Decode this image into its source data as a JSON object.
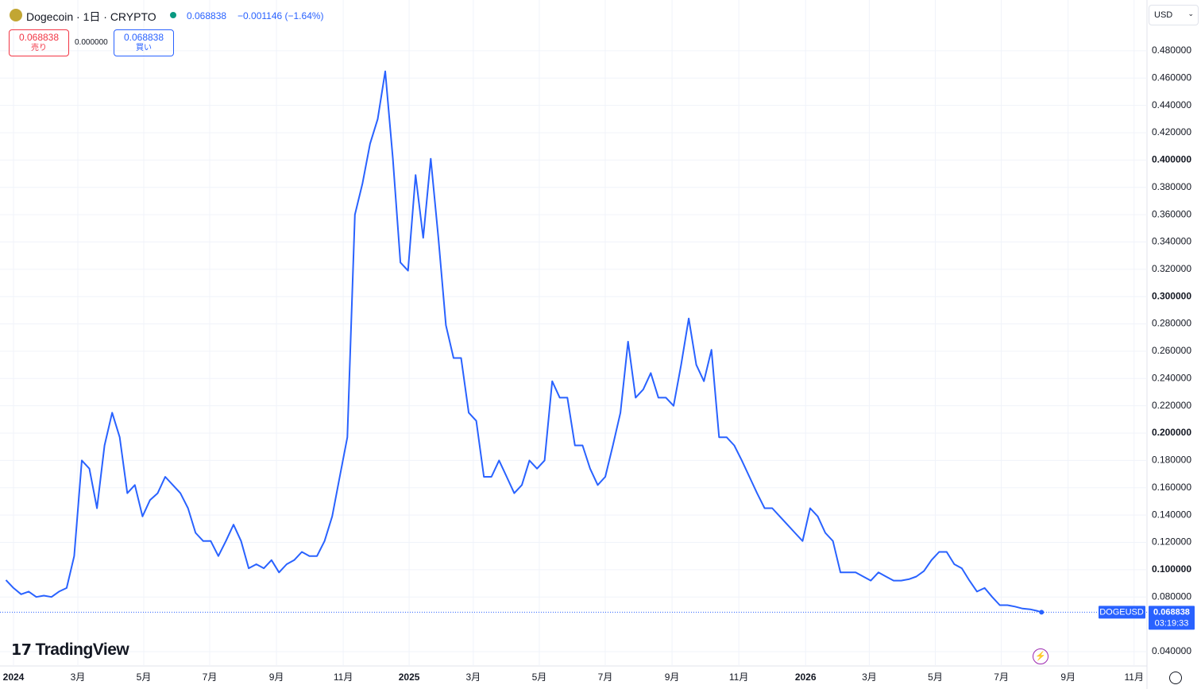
{
  "header": {
    "symbol_title": "Dogecoin · 1日 · CRYPTO",
    "price": "0.068838",
    "change": "−0.001146 (−1.64%)",
    "sell_price": "0.068838",
    "sell_label": "売り",
    "spread": "0.000000",
    "buy_price": "0.068838",
    "buy_label": "買い",
    "currency": "USD",
    "countdown": "03:19:33",
    "logo": "TradingView"
  },
  "chart_data": {
    "type": "line",
    "log_scale": false,
    "grid": true,
    "xlim": [
      -1.78,
      149.4
    ],
    "xticks": [
      {
        "value": 0,
        "label": "2024"
      },
      {
        "value": 8.48,
        "label": "3月"
      },
      {
        "value": 17.17,
        "label": "5月"
      },
      {
        "value": 25.86,
        "label": "7月"
      },
      {
        "value": 34.66,
        "label": "9月"
      },
      {
        "value": 43.46,
        "label": "11月"
      },
      {
        "value": 52.15,
        "label": "2025"
      },
      {
        "value": 60.6,
        "label": "3月"
      },
      {
        "value": 69.3,
        "label": "5月"
      },
      {
        "value": 78.0,
        "label": "7月"
      },
      {
        "value": 86.8,
        "label": "9月"
      },
      {
        "value": 95.6,
        "label": "11月"
      },
      {
        "value": 104.4,
        "label": "2026"
      },
      {
        "value": 112.8,
        "label": "3月"
      },
      {
        "value": 121.5,
        "label": "5月"
      },
      {
        "value": 130.2,
        "label": "7月"
      },
      {
        "value": 139.0,
        "label": "9月"
      },
      {
        "value": 147.7,
        "label": "11月"
      }
    ],
    "ylim": [
      0.0295,
      0.5172
    ],
    "yticks": [
      {
        "value": 0.04,
        "label": "0.040000"
      },
      {
        "value": 0.08,
        "label": "0.080000"
      },
      {
        "value": 0.1,
        "label": "0.100000"
      },
      {
        "value": 0.12,
        "label": "0.120000"
      },
      {
        "value": 0.14,
        "label": "0.140000"
      },
      {
        "value": 0.16,
        "label": "0.160000"
      },
      {
        "value": 0.18,
        "label": "0.180000"
      },
      {
        "value": 0.2,
        "label": "0.200000"
      },
      {
        "value": 0.22,
        "label": "0.220000"
      },
      {
        "value": 0.24,
        "label": "0.240000"
      },
      {
        "value": 0.26,
        "label": "0.260000"
      },
      {
        "value": 0.28,
        "label": "0.280000"
      },
      {
        "value": 0.3,
        "label": "0.300000"
      },
      {
        "value": 0.32,
        "label": "0.320000"
      },
      {
        "value": 0.34,
        "label": "0.340000"
      },
      {
        "value": 0.36,
        "label": "0.360000"
      },
      {
        "value": 0.38,
        "label": "0.380000"
      },
      {
        "value": 0.4,
        "label": "0.400000"
      },
      {
        "value": 0.42,
        "label": "0.420000"
      },
      {
        "value": 0.44,
        "label": "0.440000"
      },
      {
        "value": 0.46,
        "label": "0.460000"
      },
      {
        "value": 0.48,
        "label": "0.480000"
      }
    ],
    "series": [
      {
        "name": "DOGEUSD",
        "color": "#2962ff",
        "x": [
          -1,
          0,
          1,
          2,
          3,
          4,
          5,
          6,
          7,
          8,
          9,
          10,
          11,
          12,
          13,
          14,
          15,
          16,
          17,
          18,
          19,
          20,
          21,
          22,
          23,
          24,
          25,
          26,
          27,
          28,
          29,
          30,
          31,
          32,
          33,
          34,
          35,
          36,
          37,
          38,
          39,
          40,
          41,
          42,
          43,
          44,
          45,
          46,
          47,
          48,
          49,
          50,
          51,
          52,
          53,
          54,
          55,
          56,
          57,
          58,
          59,
          60,
          61,
          62,
          63,
          64,
          65,
          66,
          67,
          68,
          69,
          70,
          71,
          72,
          73,
          74,
          75,
          76,
          77,
          78,
          79,
          80,
          81,
          82,
          83,
          84,
          85,
          86,
          87,
          88,
          89,
          90,
          91,
          92,
          93,
          94,
          95,
          96,
          97,
          98,
          99,
          100,
          101,
          102,
          103,
          104,
          105,
          106,
          107,
          108,
          109,
          110,
          111,
          112,
          113,
          114,
          115,
          116,
          117,
          118,
          119,
          120,
          121,
          122,
          123,
          124,
          125,
          126,
          127,
          128,
          129,
          130,
          131,
          132,
          133,
          134,
          135,
          135.5
        ],
        "values": [
          0.0924,
          0.0866,
          0.082,
          0.084,
          0.08,
          0.081,
          0.08,
          0.084,
          0.0866,
          0.11,
          0.18,
          0.174,
          0.145,
          0.191,
          0.215,
          0.197,
          0.156,
          0.162,
          0.139,
          0.151,
          0.156,
          0.168,
          0.162,
          0.156,
          0.145,
          0.127,
          0.121,
          0.121,
          0.11,
          0.121,
          0.133,
          0.121,
          0.101,
          0.104,
          0.101,
          0.107,
          0.098,
          0.104,
          0.107,
          0.113,
          0.11,
          0.11,
          0.121,
          0.139,
          0.168,
          0.197,
          0.36,
          0.383,
          0.412,
          0.43,
          0.465,
          0.401,
          0.325,
          0.319,
          0.389,
          0.343,
          0.401,
          0.343,
          0.279,
          0.255,
          0.255,
          0.215,
          0.209,
          0.168,
          0.168,
          0.18,
          0.168,
          0.156,
          0.162,
          0.18,
          0.174,
          0.18,
          0.238,
          0.226,
          0.226,
          0.191,
          0.191,
          0.174,
          0.162,
          0.168,
          0.191,
          0.215,
          0.267,
          0.226,
          0.232,
          0.244,
          0.226,
          0.226,
          0.22,
          0.25,
          0.284,
          0.25,
          0.238,
          0.261,
          0.197,
          0.197,
          0.191,
          0.18,
          0.168,
          0.156,
          0.145,
          0.145,
          0.139,
          0.133,
          0.127,
          0.121,
          0.145,
          0.139,
          0.127,
          0.121,
          0.098,
          0.098,
          0.098,
          0.095,
          0.092,
          0.098,
          0.095,
          0.092,
          0.092,
          0.093,
          0.095,
          0.099,
          0.107,
          0.113,
          0.113,
          0.104,
          0.101,
          0.092,
          0.084,
          0.0866,
          0.08,
          0.074,
          0.074,
          0.073,
          0.0715,
          0.071,
          0.0697,
          0.068838
        ]
      }
    ]
  }
}
